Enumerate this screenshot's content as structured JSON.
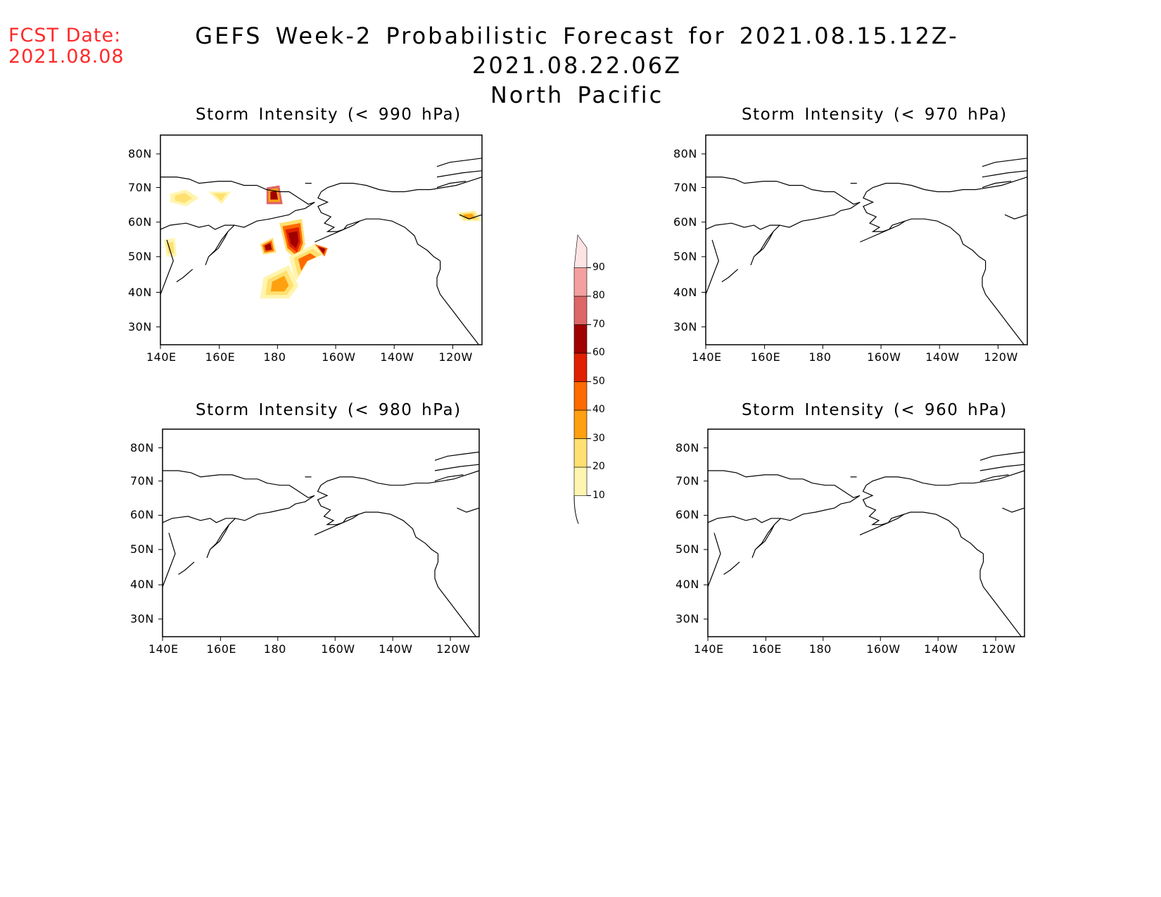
{
  "fcst_date": {
    "label": "FCST Date:",
    "value": "2021.08.08"
  },
  "title": {
    "line1": "GEFS Week-2 Probabilistic Forecast for 2021.08.15.12Z-2021.08.22.06Z",
    "line2": "North Pacific"
  },
  "panels": [
    {
      "title": "Storm Intensity (< 990 hPa)",
      "has_shading": true
    },
    {
      "title": "Storm Intensity (< 970 hPa)",
      "has_shading": false
    },
    {
      "title": "Storm Intensity (< 980 hPa)",
      "has_shading": false
    },
    {
      "title": "Storm Intensity (< 960 hPa)",
      "has_shading": false
    }
  ],
  "axes": {
    "lat_labels": [
      "80N",
      "70N",
      "60N",
      "50N",
      "40N",
      "30N"
    ],
    "lon_labels": [
      "140E",
      "160E",
      "180",
      "160W",
      "140W",
      "120W"
    ]
  },
  "colorbar": {
    "levels": [
      "10",
      "20",
      "30",
      "40",
      "50",
      "60",
      "70",
      "80",
      "90"
    ],
    "colors": [
      "#fff5b0",
      "#ffe070",
      "#ffa010",
      "#ff6a00",
      "#e02000",
      "#a00000",
      "#dd6666",
      "#f4a0a0",
      "#fde4e4"
    ]
  },
  "chart_data": {
    "type": "heatmap",
    "title": "GEFS Week-2 Probabilistic Forecast for 2021.08.15.12Z-2021.08.22.06Z",
    "subtitle": "North Pacific",
    "xlabel": "",
    "ylabel": "",
    "xlim": [
      "140E",
      "110W"
    ],
    "ylim": [
      "25N",
      "85N"
    ],
    "units": "%",
    "levels": [
      10,
      20,
      30,
      40,
      50,
      60,
      70,
      80,
      90
    ],
    "panels": [
      {
        "name": "Storm Intensity (< 990 hPa)",
        "max_probability": 70,
        "regions": [
          {
            "lon": "180",
            "lat": "68N",
            "max": 70
          },
          {
            "lon": "175W",
            "lat": "57N",
            "max": 60
          },
          {
            "lon": "178W",
            "lat": "52N",
            "max": 50
          },
          {
            "lon": "167W",
            "lat": "51N",
            "max": 50
          },
          {
            "lon": "176W",
            "lat": "44N",
            "max": 40
          },
          {
            "lon": "147E",
            "lat": "67N",
            "max": 20
          },
          {
            "lon": "160E",
            "lat": "67N",
            "max": 20
          },
          {
            "lon": "143E",
            "lat": "53N",
            "max": 20
          },
          {
            "lon": "111W",
            "lat": "62N",
            "max": 40
          }
        ]
      },
      {
        "name": "Storm Intensity (< 970 hPa)",
        "max_probability": 0,
        "regions": []
      },
      {
        "name": "Storm Intensity (< 980 hPa)",
        "max_probability": 0,
        "regions": []
      },
      {
        "name": "Storm Intensity (< 960 hPa)",
        "max_probability": 0,
        "regions": []
      }
    ]
  }
}
